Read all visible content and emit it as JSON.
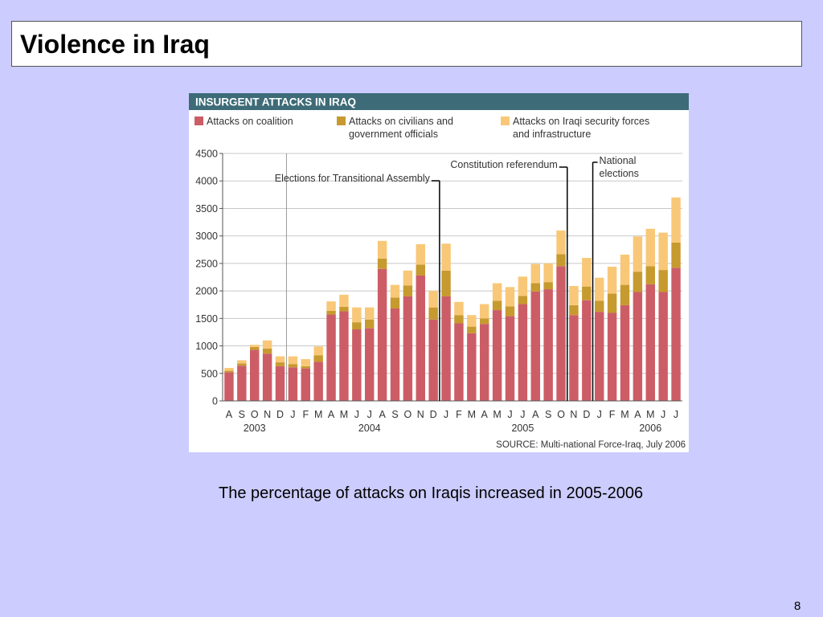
{
  "slide": {
    "title": "Violence in Iraq",
    "caption": "The percentage of attacks on Iraqis increased in 2005-2006",
    "page_number": "8"
  },
  "chart_data": {
    "type": "bar",
    "stacked": true,
    "title": "INSURGENT ATTACKS IN IRAQ",
    "source": "SOURCE: Multi-national Force-Iraq, July 2006",
    "colors": {
      "header_bg": "#3d6b77",
      "coalition": "#cc5d66",
      "civilians": "#c79a2f",
      "security": "#f8c878",
      "grid": "#c8c8c8"
    },
    "legend": [
      {
        "name": "Attacks on coalition",
        "lines": [
          "Attacks on coalition"
        ]
      },
      {
        "name": "Attacks on civilians and government officials",
        "lines": [
          "Attacks on civilians and",
          "government officials"
        ]
      },
      {
        "name": "Attacks on Iraqi security forces and infrastructure",
        "lines": [
          "Attacks on Iraqi security forces",
          "and infrastructure"
        ]
      }
    ],
    "categories": [
      "A",
      "S",
      "O",
      "N",
      "D",
      "J",
      "F",
      "M",
      "A",
      "M",
      "J",
      "J",
      "A",
      "S",
      "O",
      "N",
      "D",
      "J",
      "F",
      "M",
      "A",
      "M",
      "J",
      "J",
      "A",
      "S",
      "O",
      "N",
      "D",
      "J",
      "F",
      "M",
      "A",
      "M",
      "J",
      "J"
    ],
    "year_labels": [
      {
        "label": "2003",
        "index": 2
      },
      {
        "label": "2004",
        "index": 11
      },
      {
        "label": "2005",
        "index": 23
      },
      {
        "label": "2006",
        "index": 33
      }
    ],
    "year_start_index": 5,
    "ylim": [
      0,
      4500
    ],
    "yticks": [
      0,
      500,
      1000,
      1500,
      2000,
      2500,
      3000,
      3500,
      4000,
      4500
    ],
    "series": [
      {
        "name": "Attacks on coalition",
        "values": [
          520,
          640,
          930,
          860,
          630,
          610,
          590,
          710,
          1570,
          1630,
          1300,
          1320,
          2400,
          1680,
          1900,
          2280,
          1480,
          1900,
          1410,
          1230,
          1400,
          1650,
          1540,
          1760,
          1990,
          2030,
          2450,
          1560,
          1830,
          1620,
          1600,
          1740,
          1980,
          2120,
          1980,
          2420
        ]
      },
      {
        "name": "Attacks on civilians and government officials",
        "values": [
          30,
          40,
          50,
          90,
          70,
          60,
          40,
          120,
          70,
          80,
          130,
          160,
          190,
          200,
          200,
          200,
          220,
          470,
          150,
          120,
          100,
          170,
          180,
          150,
          150,
          130,
          220,
          180,
          250,
          200,
          350,
          370,
          370,
          330,
          400,
          460
        ]
      },
      {
        "name": "Attacks on Iraqi security forces and infrastructure",
        "values": [
          50,
          60,
          40,
          150,
          110,
          140,
          130,
          160,
          170,
          220,
          270,
          220,
          320,
          230,
          270,
          370,
          300,
          490,
          240,
          210,
          260,
          320,
          350,
          350,
          350,
          340,
          430,
          350,
          520,
          420,
          490,
          550,
          640,
          680,
          680,
          820
        ]
      }
    ],
    "annotations": [
      {
        "lines": [
          "Elections for Transitional Assembly"
        ],
        "index": 16
      },
      {
        "lines": [
          "Constitution referendum"
        ],
        "index": 26
      },
      {
        "lines": [
          "National",
          "elections"
        ],
        "index": 28
      }
    ]
  }
}
